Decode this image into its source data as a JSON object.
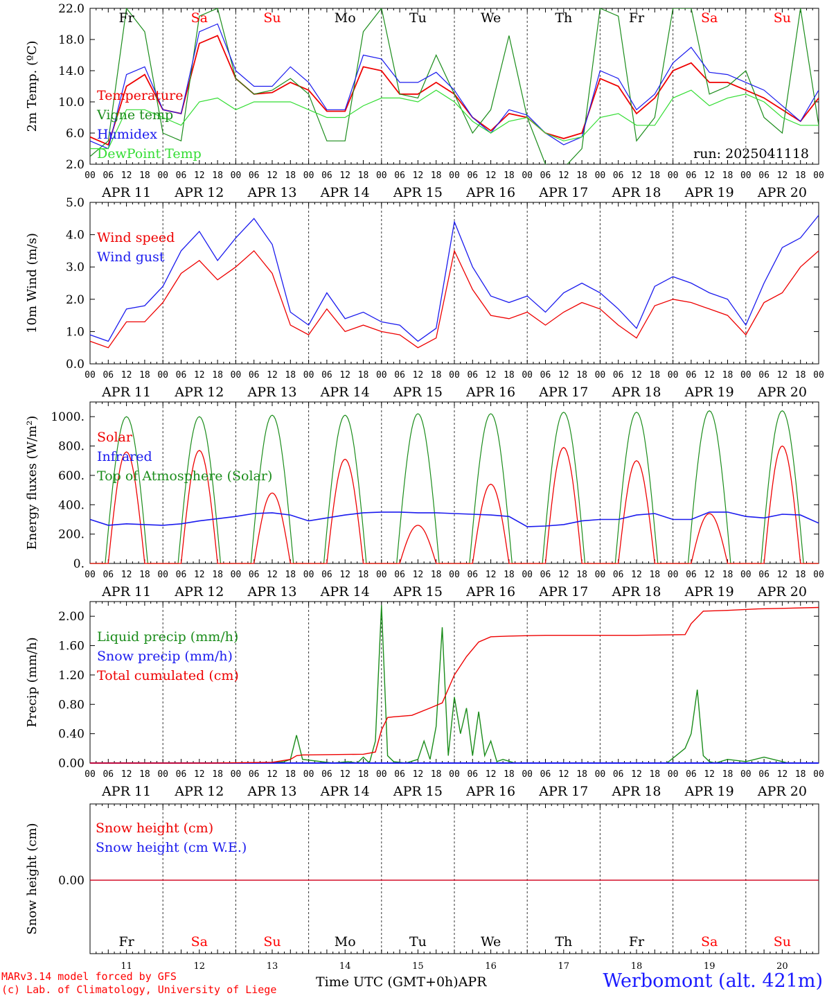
{
  "run_label": "run: 2025041118",
  "days": {
    "abbrev": [
      "Fr",
      "Sa",
      "Su",
      "Mo",
      "Tu",
      "We",
      "Th",
      "Fr",
      "Sa",
      "Su"
    ],
    "dates": [
      "APR 11",
      "APR 12",
      "APR 13",
      "APR 14",
      "APR 15",
      "APR 16",
      "APR 17",
      "APR 18",
      "APR 19",
      "APR 20"
    ],
    "numbers": [
      "11",
      "12",
      "13",
      "14",
      "15",
      "16",
      "17",
      "18",
      "19",
      "20"
    ],
    "weekend_color": "#ff0000",
    "weekday_color": "#000000"
  },
  "hour_ticks": [
    "00",
    "06",
    "12",
    "18"
  ],
  "footer": {
    "model": "MARv3.14 model forced by GFS",
    "lab": "(c) Lab. of Climatology, University of Liege",
    "time_label": "Time UTC (GMT+0h)",
    "month": "APR",
    "station": "Werbomont (alt. 421m)"
  },
  "colors": {
    "red": "#ee0000",
    "dark_green": "#1a8c1a",
    "blue": "#1a1aee",
    "light_green": "#33dd33"
  },
  "chart_data": [
    {
      "type": "line",
      "ylabel": "2m Temp. (ºC)",
      "ylim": [
        2,
        22
      ],
      "yticks": [
        "2.0",
        "6.0",
        "10.0",
        "14.0",
        "18.0",
        "22.0"
      ],
      "x_unit": "hours since APR 11 00 UTC",
      "xlim": [
        0,
        240
      ],
      "series": [
        {
          "name": "Temperature",
          "color": "#ee0000",
          "x": [
            0,
            6,
            12,
            18,
            24,
            30,
            36,
            42,
            48,
            54,
            60,
            66,
            72,
            78,
            84,
            90,
            96,
            102,
            108,
            114,
            120,
            126,
            132,
            138,
            144,
            150,
            156,
            162,
            168,
            174,
            180,
            186,
            192,
            198,
            204,
            210,
            216,
            222,
            228,
            234,
            240
          ],
          "y": [
            5.5,
            4.5,
            12,
            13.5,
            9,
            8.5,
            17.5,
            18.5,
            13,
            11,
            11.2,
            12.5,
            11.5,
            8.8,
            8.8,
            14.5,
            14,
            11,
            11,
            12.5,
            11,
            8,
            6.3,
            8.5,
            8,
            6,
            5.3,
            6,
            13,
            12,
            8.5,
            10.5,
            14,
            15,
            12.5,
            12.5,
            11.5,
            10.5,
            9,
            7.5,
            10.5
          ]
        },
        {
          "name": "Vigne temp",
          "color": "#1a8c1a",
          "x": [
            0,
            6,
            12,
            18,
            24,
            30,
            36,
            42,
            48,
            54,
            60,
            66,
            72,
            78,
            84,
            90,
            96,
            102,
            108,
            114,
            120,
            126,
            132,
            138,
            144,
            150,
            156,
            162,
            168,
            174,
            180,
            186,
            192,
            198,
            204,
            210,
            216,
            222,
            228,
            234,
            240
          ],
          "y": [
            3,
            5,
            22,
            19,
            6,
            5,
            21,
            22,
            13,
            11,
            11.5,
            13,
            11,
            5,
            5,
            19,
            22,
            11,
            10.5,
            16,
            11,
            6,
            9,
            18.5,
            8,
            2,
            1.5,
            4,
            22,
            21,
            5,
            8,
            22,
            22,
            11,
            12,
            14,
            8,
            6,
            22,
            7
          ]
        },
        {
          "name": "Humidex",
          "color": "#1a1aee",
          "x": [
            0,
            6,
            12,
            18,
            24,
            30,
            36,
            42,
            48,
            54,
            60,
            66,
            72,
            78,
            84,
            90,
            96,
            102,
            108,
            114,
            120,
            126,
            132,
            138,
            144,
            150,
            156,
            162,
            168,
            174,
            180,
            186,
            192,
            198,
            204,
            210,
            216,
            222,
            228,
            234,
            240
          ],
          "y": [
            5,
            4,
            13.5,
            14.5,
            9,
            8.5,
            19,
            20,
            14,
            12,
            12,
            14.5,
            12.5,
            9,
            9,
            16,
            15.5,
            12.5,
            12.5,
            13.8,
            11.5,
            8,
            6,
            9,
            8.3,
            6,
            4.5,
            5.5,
            14,
            13,
            9,
            11,
            15,
            17,
            13.8,
            13.5,
            12.5,
            11.5,
            9.5,
            7.5,
            11.5
          ]
        },
        {
          "name": "DewPoint Temp",
          "color": "#33dd33",
          "x": [
            0,
            6,
            12,
            18,
            24,
            30,
            36,
            42,
            48,
            54,
            60,
            66,
            72,
            78,
            84,
            90,
            96,
            102,
            108,
            114,
            120,
            126,
            132,
            138,
            144,
            150,
            156,
            162,
            168,
            174,
            180,
            186,
            192,
            198,
            204,
            210,
            216,
            222,
            228,
            234,
            240
          ],
          "y": [
            4,
            4,
            9,
            9,
            8,
            7,
            10,
            10.5,
            9,
            10,
            10,
            10,
            9,
            8,
            8,
            9.5,
            10.5,
            10.5,
            10,
            11.5,
            10,
            7.5,
            6,
            7.5,
            8,
            6,
            5,
            5.5,
            8,
            8.5,
            7,
            7,
            10.5,
            11.5,
            9.5,
            10.5,
            11,
            10,
            8,
            7,
            7
          ]
        }
      ]
    },
    {
      "type": "line",
      "ylabel": "10m Wind (m/s)",
      "ylim": [
        0,
        5
      ],
      "yticks": [
        "0.0",
        "1.0",
        "2.0",
        "3.0",
        "4.0",
        "5.0"
      ],
      "x_unit": "hours since APR 11 00 UTC",
      "xlim": [
        0,
        240
      ],
      "series": [
        {
          "name": "Wind speed",
          "color": "#ee0000",
          "x": [
            0,
            6,
            12,
            18,
            24,
            30,
            36,
            42,
            48,
            54,
            60,
            66,
            72,
            78,
            84,
            90,
            96,
            102,
            108,
            114,
            120,
            126,
            132,
            138,
            144,
            150,
            156,
            162,
            168,
            174,
            180,
            186,
            192,
            198,
            204,
            210,
            216,
            222,
            228,
            234,
            240
          ],
          "y": [
            0.7,
            0.5,
            1.3,
            1.3,
            1.9,
            2.8,
            3.2,
            2.6,
            3.0,
            3.5,
            2.8,
            1.2,
            0.9,
            1.7,
            1.0,
            1.2,
            1.0,
            0.9,
            0.5,
            0.8,
            3.5,
            2.3,
            1.5,
            1.4,
            1.6,
            1.2,
            1.6,
            1.9,
            1.7,
            1.2,
            0.8,
            1.8,
            2.0,
            1.9,
            1.7,
            1.5,
            0.9,
            1.9,
            2.2,
            3.0,
            3.5
          ]
        },
        {
          "name": "Wind gust",
          "color": "#1a1aee",
          "x": [
            0,
            6,
            12,
            18,
            24,
            30,
            36,
            42,
            48,
            54,
            60,
            66,
            72,
            78,
            84,
            90,
            96,
            102,
            108,
            114,
            120,
            126,
            132,
            138,
            144,
            150,
            156,
            162,
            168,
            174,
            180,
            186,
            192,
            198,
            204,
            210,
            216,
            222,
            228,
            234,
            240
          ],
          "y": [
            0.9,
            0.7,
            1.7,
            1.8,
            2.4,
            3.5,
            4.1,
            3.2,
            3.9,
            4.5,
            3.7,
            1.6,
            1.2,
            2.2,
            1.4,
            1.6,
            1.3,
            1.2,
            0.7,
            1.1,
            4.4,
            3.0,
            2.1,
            1.9,
            2.1,
            1.6,
            2.2,
            2.5,
            2.2,
            1.7,
            1.1,
            2.4,
            2.7,
            2.5,
            2.2,
            2.0,
            1.2,
            2.5,
            3.6,
            3.9,
            4.6
          ]
        }
      ]
    },
    {
      "type": "line",
      "ylabel": "Energy fluxes (W/m²)",
      "ylim": [
        0,
        1100
      ],
      "yticks": [
        "0.",
        "200.",
        "400.",
        "600.",
        "800.",
        "1000."
      ],
      "x_unit": "hours since APR 11 00 UTC",
      "xlim": [
        0,
        240
      ],
      "series": [
        {
          "name": "Solar",
          "color": "#ee0000",
          "peaks": [
            760,
            770,
            480,
            710,
            260,
            540,
            790,
            700,
            340,
            800
          ]
        },
        {
          "name": "Infrared",
          "color": "#1a1aee",
          "x": [
            0,
            6,
            12,
            18,
            24,
            30,
            36,
            42,
            48,
            54,
            60,
            66,
            72,
            78,
            84,
            90,
            96,
            102,
            108,
            114,
            120,
            126,
            132,
            138,
            144,
            150,
            156,
            162,
            168,
            174,
            180,
            186,
            192,
            198,
            204,
            210,
            216,
            222,
            228,
            234,
            240
          ],
          "y": [
            300,
            260,
            270,
            265,
            260,
            270,
            290,
            305,
            320,
            340,
            345,
            330,
            290,
            310,
            330,
            345,
            350,
            350,
            345,
            345,
            340,
            335,
            330,
            320,
            250,
            255,
            265,
            290,
            300,
            300,
            330,
            340,
            300,
            300,
            350,
            350,
            320,
            310,
            335,
            330,
            275
          ]
        },
        {
          "name": "Top of Atmosphere (Solar)",
          "color": "#1a8c1a",
          "peaks": [
            1000,
            1000,
            1010,
            1010,
            1020,
            1020,
            1030,
            1030,
            1040,
            1040
          ]
        }
      ]
    },
    {
      "type": "line",
      "ylabel": "Precip (mm/h)",
      "ylim": [
        0,
        2.2
      ],
      "yticks": [
        "0.00",
        "0.40",
        "0.80",
        "1.20",
        "1.60",
        "2.00"
      ],
      "x_unit": "hours since APR 11 00 UTC",
      "xlim": [
        0,
        240
      ],
      "series": [
        {
          "name": "Liquid precip (mm/h)",
          "color": "#1a8c1a",
          "x": [
            0,
            40,
            60,
            64,
            66,
            68,
            70,
            80,
            85,
            88,
            90,
            92,
            94,
            96,
            98,
            100,
            104,
            108,
            110,
            112,
            114,
            116,
            118,
            120,
            122,
            124,
            126,
            128,
            130,
            132,
            134,
            136,
            140,
            150,
            160,
            190,
            196,
            198,
            200,
            202,
            204,
            206,
            210,
            216,
            222,
            230,
            240
          ],
          "y": [
            0,
            0,
            0,
            0.02,
            0.05,
            0.38,
            0.05,
            0,
            0.02,
            0,
            0.08,
            0,
            0.3,
            2.15,
            0.1,
            0.02,
            0,
            0.05,
            0.3,
            0.05,
            0.5,
            1.85,
            0.1,
            0.9,
            0.4,
            0.75,
            0.1,
            0.7,
            0.1,
            0.3,
            0.02,
            0.05,
            0,
            0,
            0,
            0,
            0.2,
            0.4,
            1.0,
            0.1,
            0.02,
            0,
            0.05,
            0.02,
            0.08,
            0,
            0
          ]
        },
        {
          "name": "Snow precip (mm/h)",
          "color": "#1a1aee",
          "x": [
            0,
            240
          ],
          "y": [
            0,
            0
          ]
        },
        {
          "name": "Total cumulated (cm)",
          "color": "#ee0000",
          "x": [
            0,
            40,
            60,
            66,
            68,
            70,
            90,
            94,
            96,
            98,
            100,
            106,
            112,
            116,
            120,
            124,
            128,
            132,
            138,
            150,
            180,
            196,
            198,
            202,
            210,
            220,
            240
          ],
          "y": [
            0,
            0,
            0.01,
            0.05,
            0.1,
            0.11,
            0.12,
            0.15,
            0.45,
            0.62,
            0.63,
            0.65,
            0.75,
            0.82,
            1.2,
            1.45,
            1.65,
            1.72,
            1.73,
            1.74,
            1.74,
            1.75,
            1.9,
            2.07,
            2.08,
            2.1,
            2.12
          ]
        }
      ]
    },
    {
      "type": "line",
      "ylabel": "Snow height (cm)",
      "yticks": [
        "0.00"
      ],
      "x_unit": "hours since APR 11 00 UTC",
      "xlim": [
        0,
        240
      ],
      "series": [
        {
          "name": "Snow height (cm)",
          "color": "#ee0000",
          "x": [
            0,
            240
          ],
          "y": [
            0,
            0
          ]
        },
        {
          "name": "Snow height (cm W.E.)",
          "color": "#1a1aee",
          "x": [
            0,
            240
          ],
          "y": [
            0,
            0
          ]
        }
      ]
    }
  ]
}
